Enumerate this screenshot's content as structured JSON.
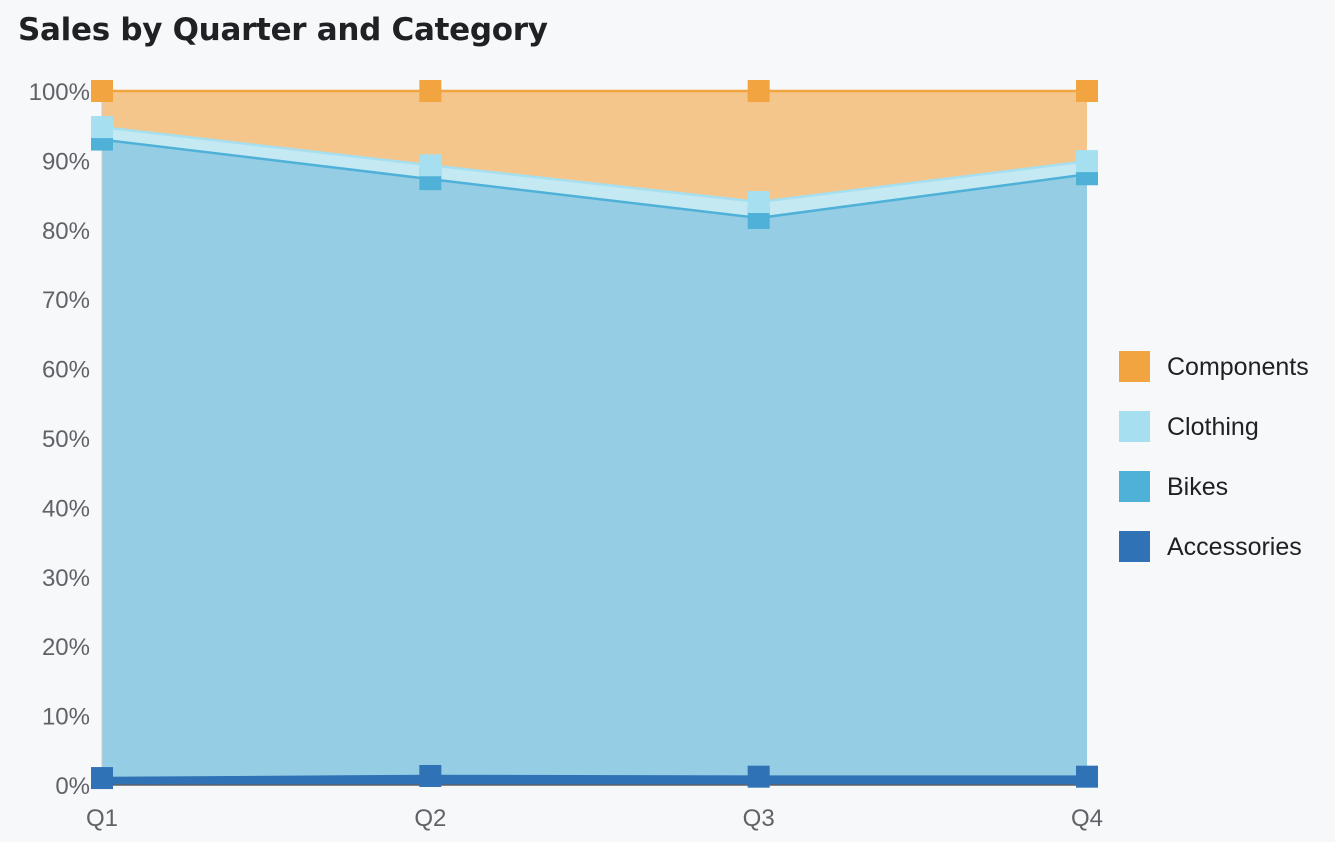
{
  "chart_data": {
    "type": "area",
    "stacked": true,
    "normalized": true,
    "title": "Sales by Quarter and Category",
    "categories": [
      "Q1",
      "Q2",
      "Q3",
      "Q4"
    ],
    "y_ticks": [
      "0%",
      "10%",
      "20%",
      "30%",
      "40%",
      "50%",
      "60%",
      "70%",
      "80%",
      "90%",
      "100%"
    ],
    "ylim": [
      0,
      100
    ],
    "unit": "%",
    "grid": false,
    "legend_position": "right",
    "series": [
      {
        "name": "Accessories",
        "color": "#2f72b5",
        "values": [
          1.0,
          1.3,
          1.2,
          1.2
        ]
      },
      {
        "name": "Bikes",
        "color": "#4fb1d8",
        "values": [
          92.0,
          86.0,
          80.5,
          86.8
        ]
      },
      {
        "name": "Clothing",
        "color": "#a6dfef",
        "values": [
          1.8,
          2.0,
          2.3,
          1.9
        ]
      },
      {
        "name": "Components",
        "color": "#f2a440",
        "values": [
          5.2,
          10.7,
          16.0,
          10.1
        ]
      }
    ],
    "fill_colors": {
      "Accessories": "#2f72b5",
      "Bikes": "#95cde4",
      "Clothing": "#c4e9f3",
      "Components": "#f4c68c"
    }
  }
}
